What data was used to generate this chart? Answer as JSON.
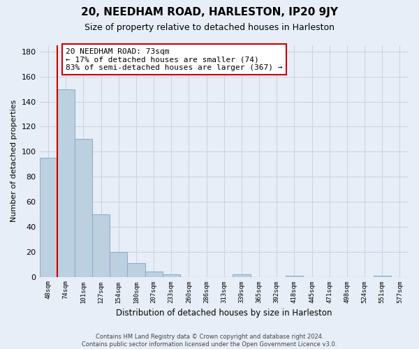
{
  "title": "20, NEEDHAM ROAD, HARLESTON, IP20 9JY",
  "subtitle": "Size of property relative to detached houses in Harleston",
  "xlabel": "Distribution of detached houses by size in Harleston",
  "ylabel": "Number of detached properties",
  "bar_labels": [
    "48sqm",
    "74sqm",
    "101sqm",
    "127sqm",
    "154sqm",
    "180sqm",
    "207sqm",
    "233sqm",
    "260sqm",
    "286sqm",
    "313sqm",
    "339sqm",
    "365sqm",
    "392sqm",
    "418sqm",
    "445sqm",
    "471sqm",
    "498sqm",
    "524sqm",
    "551sqm",
    "577sqm"
  ],
  "bar_values": [
    95,
    150,
    110,
    50,
    20,
    11,
    4,
    2,
    0,
    0,
    0,
    2,
    0,
    0,
    1,
    0,
    0,
    0,
    0,
    1,
    0
  ],
  "bar_color": "#bdd0e0",
  "bar_edge_color": "#8ab0cc",
  "grid_color": "#c8d4e4",
  "bg_color": "#e8eef8",
  "annotation_box_text": "20 NEEDHAM ROAD: 73sqm\n← 17% of detached houses are smaller (74)\n83% of semi-detached houses are larger (367) →",
  "vline_color": "#cc0000",
  "ylim": [
    0,
    185
  ],
  "yticks": [
    0,
    20,
    40,
    60,
    80,
    100,
    120,
    140,
    160,
    180
  ],
  "footer_line1": "Contains HM Land Registry data © Crown copyright and database right 2024.",
  "footer_line2": "Contains public sector information licensed under the Open Government Licence v3.0."
}
